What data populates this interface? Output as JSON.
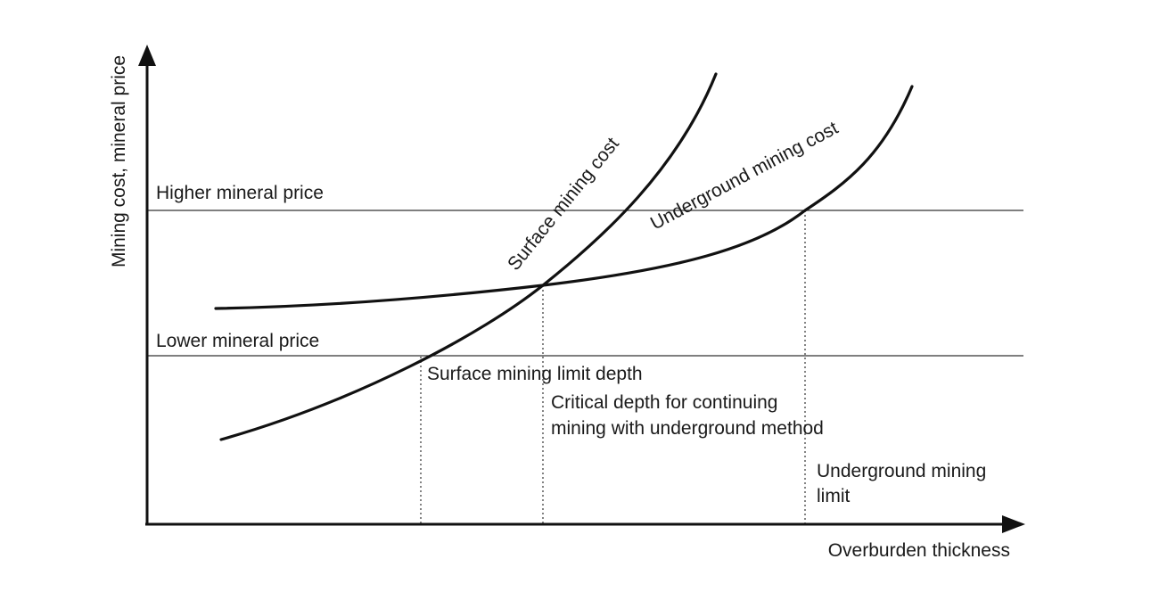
{
  "axes": {
    "y_label": "Mining cost, mineral price",
    "x_label": "Overburden thickness"
  },
  "price_levels": {
    "higher": "Higher mineral price",
    "lower": "Lower mineral price"
  },
  "curves": {
    "surface": "Surface mining cost",
    "underground": "Underground mining cost"
  },
  "annotations": {
    "surface_limit": "Surface mining limit depth",
    "critical_depth_line1": "Critical depth for continuing",
    "critical_depth_line2": "mining with underground method",
    "underground_limit_line1": "Underground mining",
    "underground_limit_line2": "limit"
  },
  "colors": {
    "ink": "#111111",
    "background": "#ffffff"
  }
}
